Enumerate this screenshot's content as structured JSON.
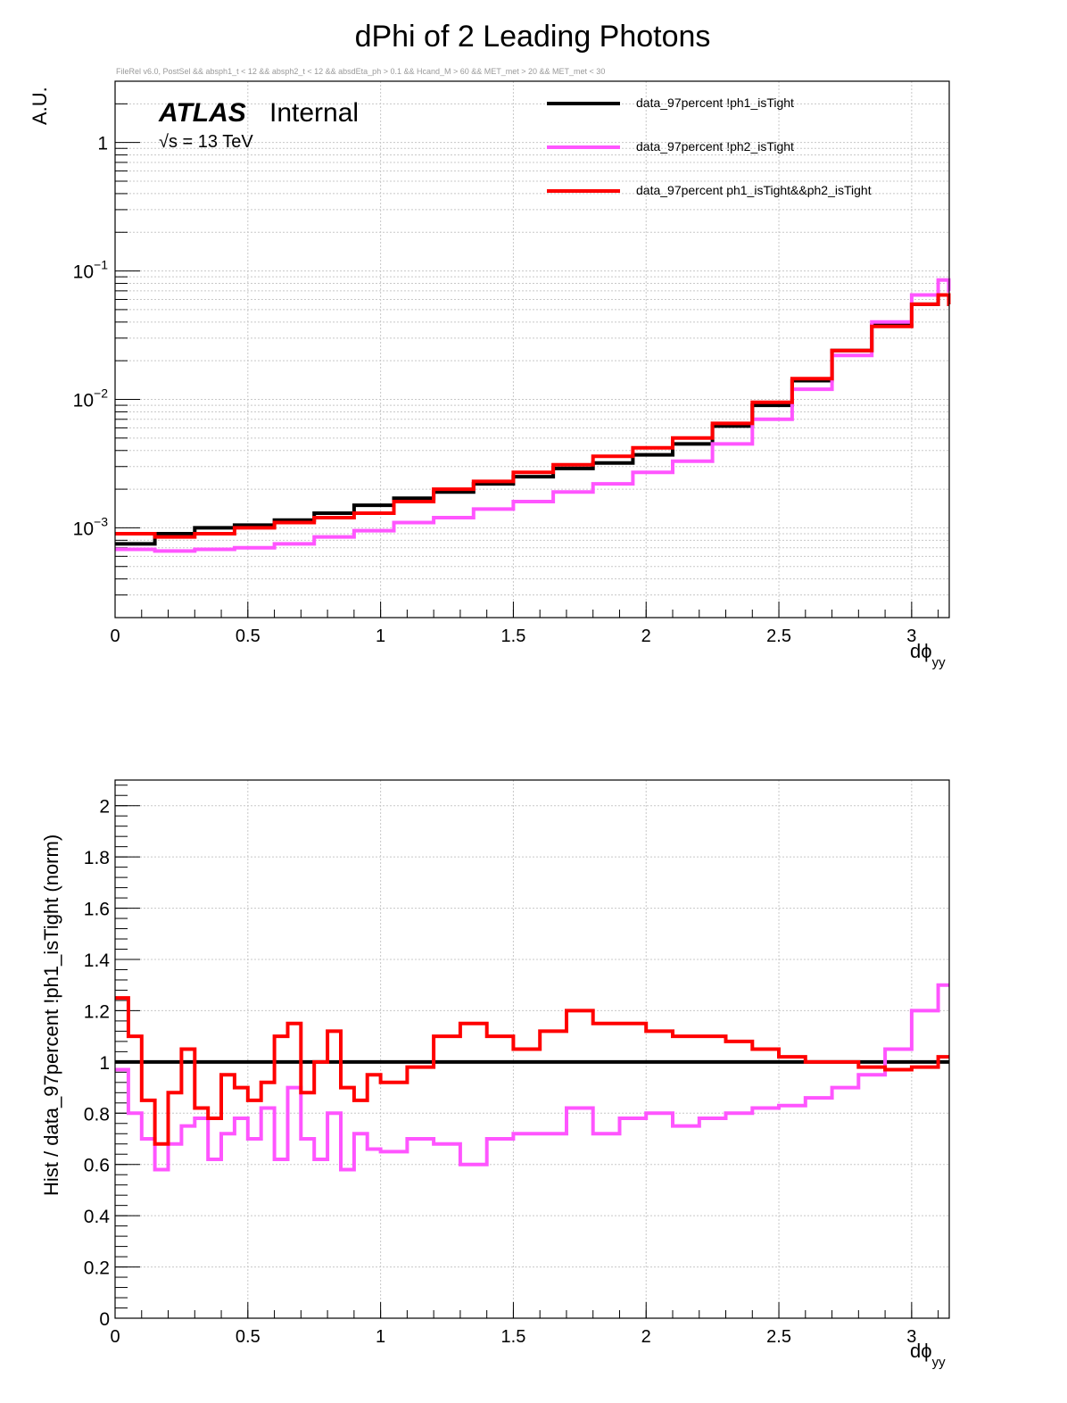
{
  "title": "dPhi of 2 Leading Photons",
  "selection_text": "FileRel v6.0, PostSel &&  absph1_t < 12 && absph2_t < 12 && absdEta_ph > 0.1 && Hcand_M > 60 && MET_met > 20 && MET_met < 30",
  "atlas_label": "ATLAS",
  "atlas_status": "Internal",
  "energy_label": "√s = 13 TeV",
  "colors": {
    "black": "#000000",
    "magenta": "#ff55ff",
    "red": "#ff0000",
    "grid": "#c8c8c8"
  },
  "chart_data": [
    {
      "type": "line",
      "title": "dPhi of 2 Leading Photons",
      "xlabel": "dϕ",
      "xlabel_sub": "yy",
      "ylabel": "A.U.",
      "yscale": "log",
      "xlim": [
        0,
        3.1416
      ],
      "ylim": [
        0.0002,
        3
      ],
      "grid": true,
      "legend_position": "top-right",
      "x_ticks": [
        "0",
        "0.5",
        "1",
        "1.5",
        "2",
        "2.5",
        "3"
      ],
      "y_ticks": [
        {
          "value": 1,
          "base": "1",
          "exp": ""
        },
        {
          "value": 0.1,
          "base": "10",
          "exp": "−1"
        },
        {
          "value": 0.01,
          "base": "10",
          "exp": "−2"
        },
        {
          "value": 0.001,
          "base": "10",
          "exp": "−3"
        }
      ],
      "x": [
        0,
        0.15,
        0.3,
        0.45,
        0.6,
        0.75,
        0.9,
        1.05,
        1.2,
        1.35,
        1.5,
        1.65,
        1.8,
        1.95,
        2.1,
        2.25,
        2.4,
        2.55,
        2.7,
        2.85,
        3.0,
        3.1,
        3.14
      ],
      "series": [
        {
          "name": "data_97percent  !ph1_isTight",
          "color": "#000000",
          "values": [
            0.00075,
            0.0009,
            0.001,
            0.00105,
            0.00115,
            0.0013,
            0.0015,
            0.0017,
            0.0019,
            0.0022,
            0.0025,
            0.0029,
            0.0032,
            0.0037,
            0.0045,
            0.0062,
            0.009,
            0.014,
            0.024,
            0.038,
            0.055,
            0.065,
            0.055
          ]
        },
        {
          "name": "data_97percent  !ph2_isTight",
          "color": "#ff55ff",
          "values": [
            0.00068,
            0.00066,
            0.00068,
            0.0007,
            0.00075,
            0.00085,
            0.00095,
            0.0011,
            0.0012,
            0.0014,
            0.0016,
            0.0019,
            0.0022,
            0.0027,
            0.0033,
            0.0045,
            0.007,
            0.012,
            0.022,
            0.04,
            0.065,
            0.085,
            0.07
          ]
        },
        {
          "name": "data_97percent  ph1_isTight&&ph2_isTight",
          "color": "#ff0000",
          "values": [
            0.0009,
            0.00085,
            0.0009,
            0.001,
            0.0011,
            0.0012,
            0.0013,
            0.0016,
            0.002,
            0.0023,
            0.0027,
            0.0031,
            0.0036,
            0.0042,
            0.005,
            0.0065,
            0.0095,
            0.0145,
            0.024,
            0.037,
            0.055,
            0.065,
            0.055
          ]
        }
      ]
    },
    {
      "type": "line",
      "xlabel": "dϕ",
      "xlabel_sub": "yy",
      "ylabel": "Hist / data_97percent  !ph1_isTight (norm)",
      "xlim": [
        0,
        3.1416
      ],
      "ylim": [
        0,
        2.1
      ],
      "grid": true,
      "x_ticks": [
        "0",
        "0.5",
        "1",
        "1.5",
        "2",
        "2.5",
        "3"
      ],
      "y_ticks": [
        "0",
        "0.2",
        "0.4",
        "0.6",
        "0.8",
        "1",
        "1.2",
        "1.4",
        "1.6",
        "1.8",
        "2"
      ],
      "x": [
        0,
        0.05,
        0.1,
        0.15,
        0.2,
        0.25,
        0.3,
        0.35,
        0.4,
        0.45,
        0.5,
        0.55,
        0.6,
        0.65,
        0.7,
        0.75,
        0.8,
        0.85,
        0.9,
        0.95,
        1.0,
        1.1,
        1.2,
        1.3,
        1.4,
        1.5,
        1.6,
        1.7,
        1.8,
        1.9,
        2.0,
        2.1,
        2.2,
        2.3,
        2.4,
        2.5,
        2.6,
        2.7,
        2.8,
        2.9,
        3.0,
        3.1
      ],
      "series": [
        {
          "name": "data_97percent  !ph1_isTight",
          "color": "#000000",
          "values": [
            1,
            1,
            1,
            1,
            1,
            1,
            1,
            1,
            1,
            1,
            1,
            1,
            1,
            1,
            1,
            1,
            1,
            1,
            1,
            1,
            1,
            1,
            1,
            1,
            1,
            1,
            1,
            1,
            1,
            1,
            1,
            1,
            1,
            1,
            1,
            1,
            1,
            1,
            1,
            1,
            1,
            1
          ]
        },
        {
          "name": "data_97percent  !ph2_isTight",
          "color": "#ff55ff",
          "values": [
            0.97,
            0.8,
            0.7,
            0.58,
            0.68,
            0.75,
            0.78,
            0.62,
            0.72,
            0.78,
            0.7,
            0.82,
            0.62,
            0.9,
            0.7,
            0.62,
            0.8,
            0.58,
            0.72,
            0.66,
            0.65,
            0.7,
            0.68,
            0.6,
            0.7,
            0.72,
            0.72,
            0.82,
            0.72,
            0.78,
            0.8,
            0.75,
            0.78,
            0.8,
            0.82,
            0.83,
            0.86,
            0.9,
            0.95,
            1.05,
            1.2,
            1.3
          ]
        },
        {
          "name": "data_97percent  ph1_isTight&&ph2_isTight",
          "color": "#ff0000",
          "values": [
            1.25,
            1.1,
            0.85,
            0.68,
            0.88,
            1.05,
            0.82,
            0.78,
            0.95,
            0.9,
            0.85,
            0.92,
            1.1,
            1.15,
            0.88,
            1.0,
            1.12,
            0.9,
            0.85,
            0.95,
            0.92,
            0.98,
            1.1,
            1.15,
            1.1,
            1.05,
            1.12,
            1.2,
            1.15,
            1.15,
            1.12,
            1.1,
            1.1,
            1.08,
            1.05,
            1.02,
            1.0,
            1.0,
            0.98,
            0.97,
            0.98,
            1.02
          ]
        }
      ]
    }
  ]
}
